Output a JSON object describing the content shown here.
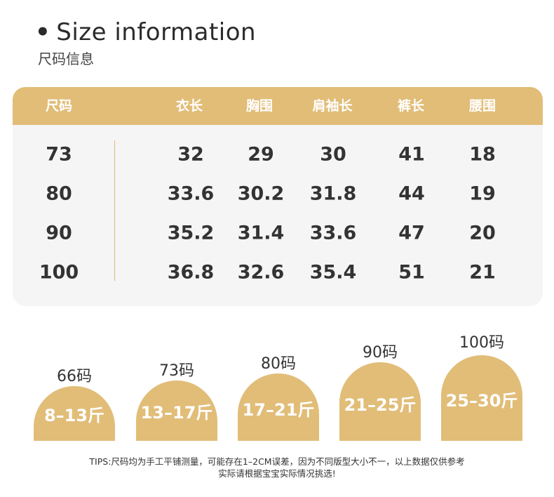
{
  "header": {
    "bullet": "•",
    "title": "Size information",
    "subtitle": "尺码信息"
  },
  "table": {
    "columns": [
      "尺码",
      "衣长",
      "胸围",
      "肩袖长",
      "裤长",
      "腰围"
    ],
    "rows": [
      [
        "73",
        "32",
        "29",
        "30",
        "41",
        "18"
      ],
      [
        "80",
        "33.6",
        "30.2",
        "31.8",
        "44",
        "19"
      ],
      [
        "90",
        "35.2",
        "31.4",
        "33.6",
        "47",
        "20"
      ],
      [
        "100",
        "36.8",
        "32.6",
        "35.4",
        "51",
        "21"
      ]
    ]
  },
  "weights": [
    {
      "size": "66码",
      "range": "8–13斤"
    },
    {
      "size": "73码",
      "range": "13–17斤"
    },
    {
      "size": "80码",
      "range": "17–21斤"
    },
    {
      "size": "90码",
      "range": "21–25斤"
    },
    {
      "size": "100码",
      "range": "25–30斤"
    }
  ],
  "tips": {
    "line1": "TIPS:尺码均为手工平铺测量，可能存在1–2CM误差，因为不同版型大小不一，以上数据仅供参考",
    "line2": "实际请根据宝宝实际情况挑选!"
  },
  "colors": {
    "accent": "#e1bd78",
    "card_bg": "#f5f5f5",
    "divider": "#e3b878"
  }
}
